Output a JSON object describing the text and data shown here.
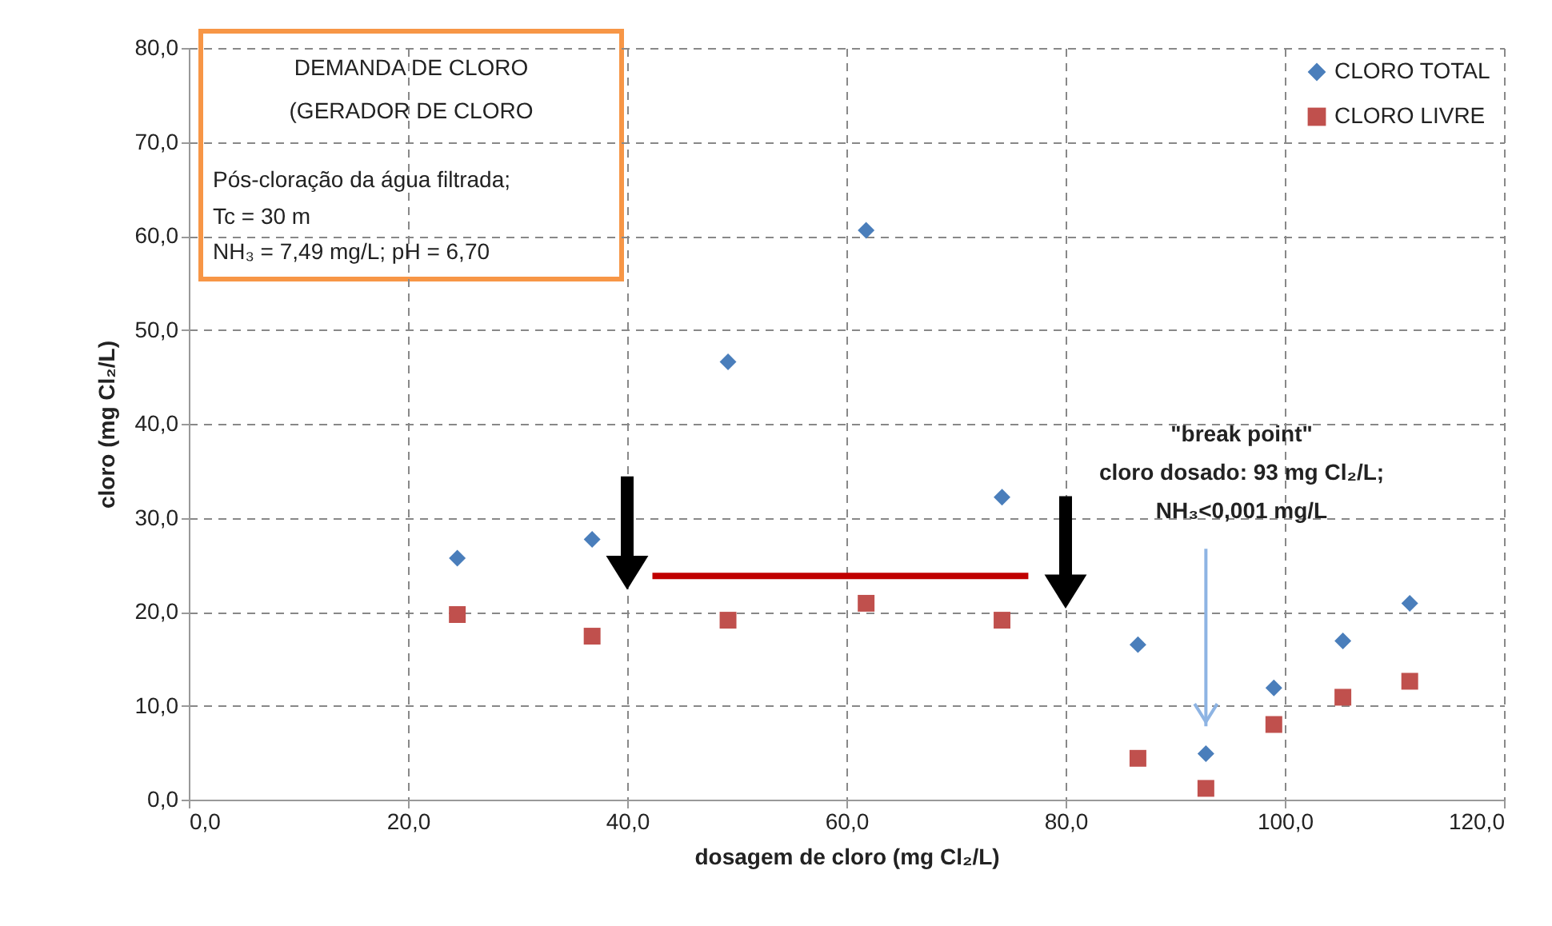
{
  "chart_data": {
    "type": "scatter",
    "xlabel": "dosagem de cloro (mg Cl₂/L)",
    "ylabel": "cloro (mg Cl₂/L)",
    "xlim": [
      0,
      120
    ],
    "xticks": [
      {
        "value": 0,
        "label": "0,0"
      },
      {
        "value": 20,
        "label": "20,0"
      },
      {
        "value": 40,
        "label": "40,0"
      },
      {
        "value": 60,
        "label": "60,0"
      },
      {
        "value": 80,
        "label": "80,0"
      },
      {
        "value": 100,
        "label": "100,0"
      },
      {
        "value": 120,
        "label": "120,0"
      }
    ],
    "ylim": [
      0,
      80
    ],
    "yticks": [
      {
        "value": 0,
        "label": "0,0"
      },
      {
        "value": 10,
        "label": "10,0"
      },
      {
        "value": 20,
        "label": "20,0"
      },
      {
        "value": 30,
        "label": "30,0"
      },
      {
        "value": 40,
        "label": "40,0"
      },
      {
        "value": 50,
        "label": "50,0"
      },
      {
        "value": 60,
        "label": "60,0"
      },
      {
        "value": 70,
        "label": "70,0"
      },
      {
        "value": 80,
        "label": "80,0"
      }
    ],
    "grid": true,
    "legend": "top right",
    "x": [
      24.5,
      36.8,
      49.2,
      61.8,
      74.2,
      86.6,
      92.8,
      99.0,
      105.3,
      111.4
    ],
    "series": [
      {
        "name": "CLORO TOTAL",
        "color": "#4a7ebb",
        "marker": "diamond",
        "values": [
          25.7,
          27.7,
          46.6,
          60.6,
          32.2,
          16.5,
          4.9,
          11.9,
          16.9,
          20.9
        ]
      },
      {
        "name": "CLORO LIVRE",
        "color": "#c0504d",
        "marker": "square",
        "values": [
          19.7,
          17.4,
          19.1,
          20.9,
          19.1,
          4.4,
          1.2,
          8.0,
          10.9,
          12.6
        ]
      },
      {
        "type": "line",
        "color": "#c00000",
        "x": [
          42.3,
          76.6
        ],
        "values": [
          23.8,
          23.8
        ]
      }
    ],
    "annotations": [
      "DEMANDA DE CLORO",
      "(GERADOR DE CLORO",
      "Pós-cloração da água filtrada;",
      "Tc = 30 m",
      "NH₃ = 7,49 mg/L; pH = 6,70",
      "\"break point\"",
      "cloro dosado: 93 mg Cl₂/L;",
      "NH₃<0,001 mg/L"
    ]
  }
}
